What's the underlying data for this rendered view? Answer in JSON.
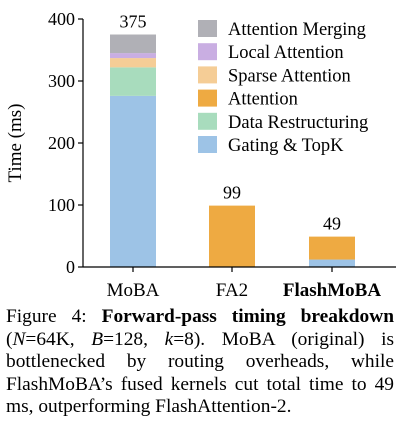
{
  "chart_data": {
    "type": "bar",
    "stacked": true,
    "title": "",
    "xlabel": "",
    "ylabel": "Time (ms)",
    "ylim": [
      0,
      400
    ],
    "yticks": [
      0,
      100,
      200,
      300,
      400
    ],
    "grid": false,
    "legend_position": "top-right",
    "categories": [
      "MoBA",
      "FA2",
      "FlashMoBA"
    ],
    "category_bold": [
      false,
      false,
      true
    ],
    "totals": [
      "375",
      "99",
      "49"
    ],
    "series": [
      {
        "name": "Gating & TopK",
        "color": "#9dc3e6",
        "values": [
          276,
          0,
          12
        ]
      },
      {
        "name": "Data Restructuring",
        "color": "#a8dcbd",
        "values": [
          46,
          0,
          0
        ]
      },
      {
        "name": "Attention",
        "color": "#eeaa42",
        "values": [
          0,
          99,
          37
        ]
      },
      {
        "name": "Sparse Attention",
        "color": "#f5cd96",
        "values": [
          15,
          0,
          0
        ]
      },
      {
        "name": "Local Attention",
        "color": "#c9aee2",
        "values": [
          8,
          0,
          0
        ]
      },
      {
        "name": "Attention Merging",
        "color": "#b0b0b6",
        "values": [
          30,
          0,
          0
        ]
      }
    ]
  },
  "caption": {
    "label": "Figure 4:",
    "title": "Forward-pass timing breakdown",
    "p1": "(",
    "n_sym": "N",
    "n_val": "=64K,",
    "b_sym": "B",
    "b_val": "=128,",
    "k_sym": "k",
    "k_val": "=8).",
    "body": " MoBA (original) is bottlenecked by routing overheads, while FlashMoBA’s fused kernels cut total time to 49 ms, outperforming FlashAttention-2."
  }
}
